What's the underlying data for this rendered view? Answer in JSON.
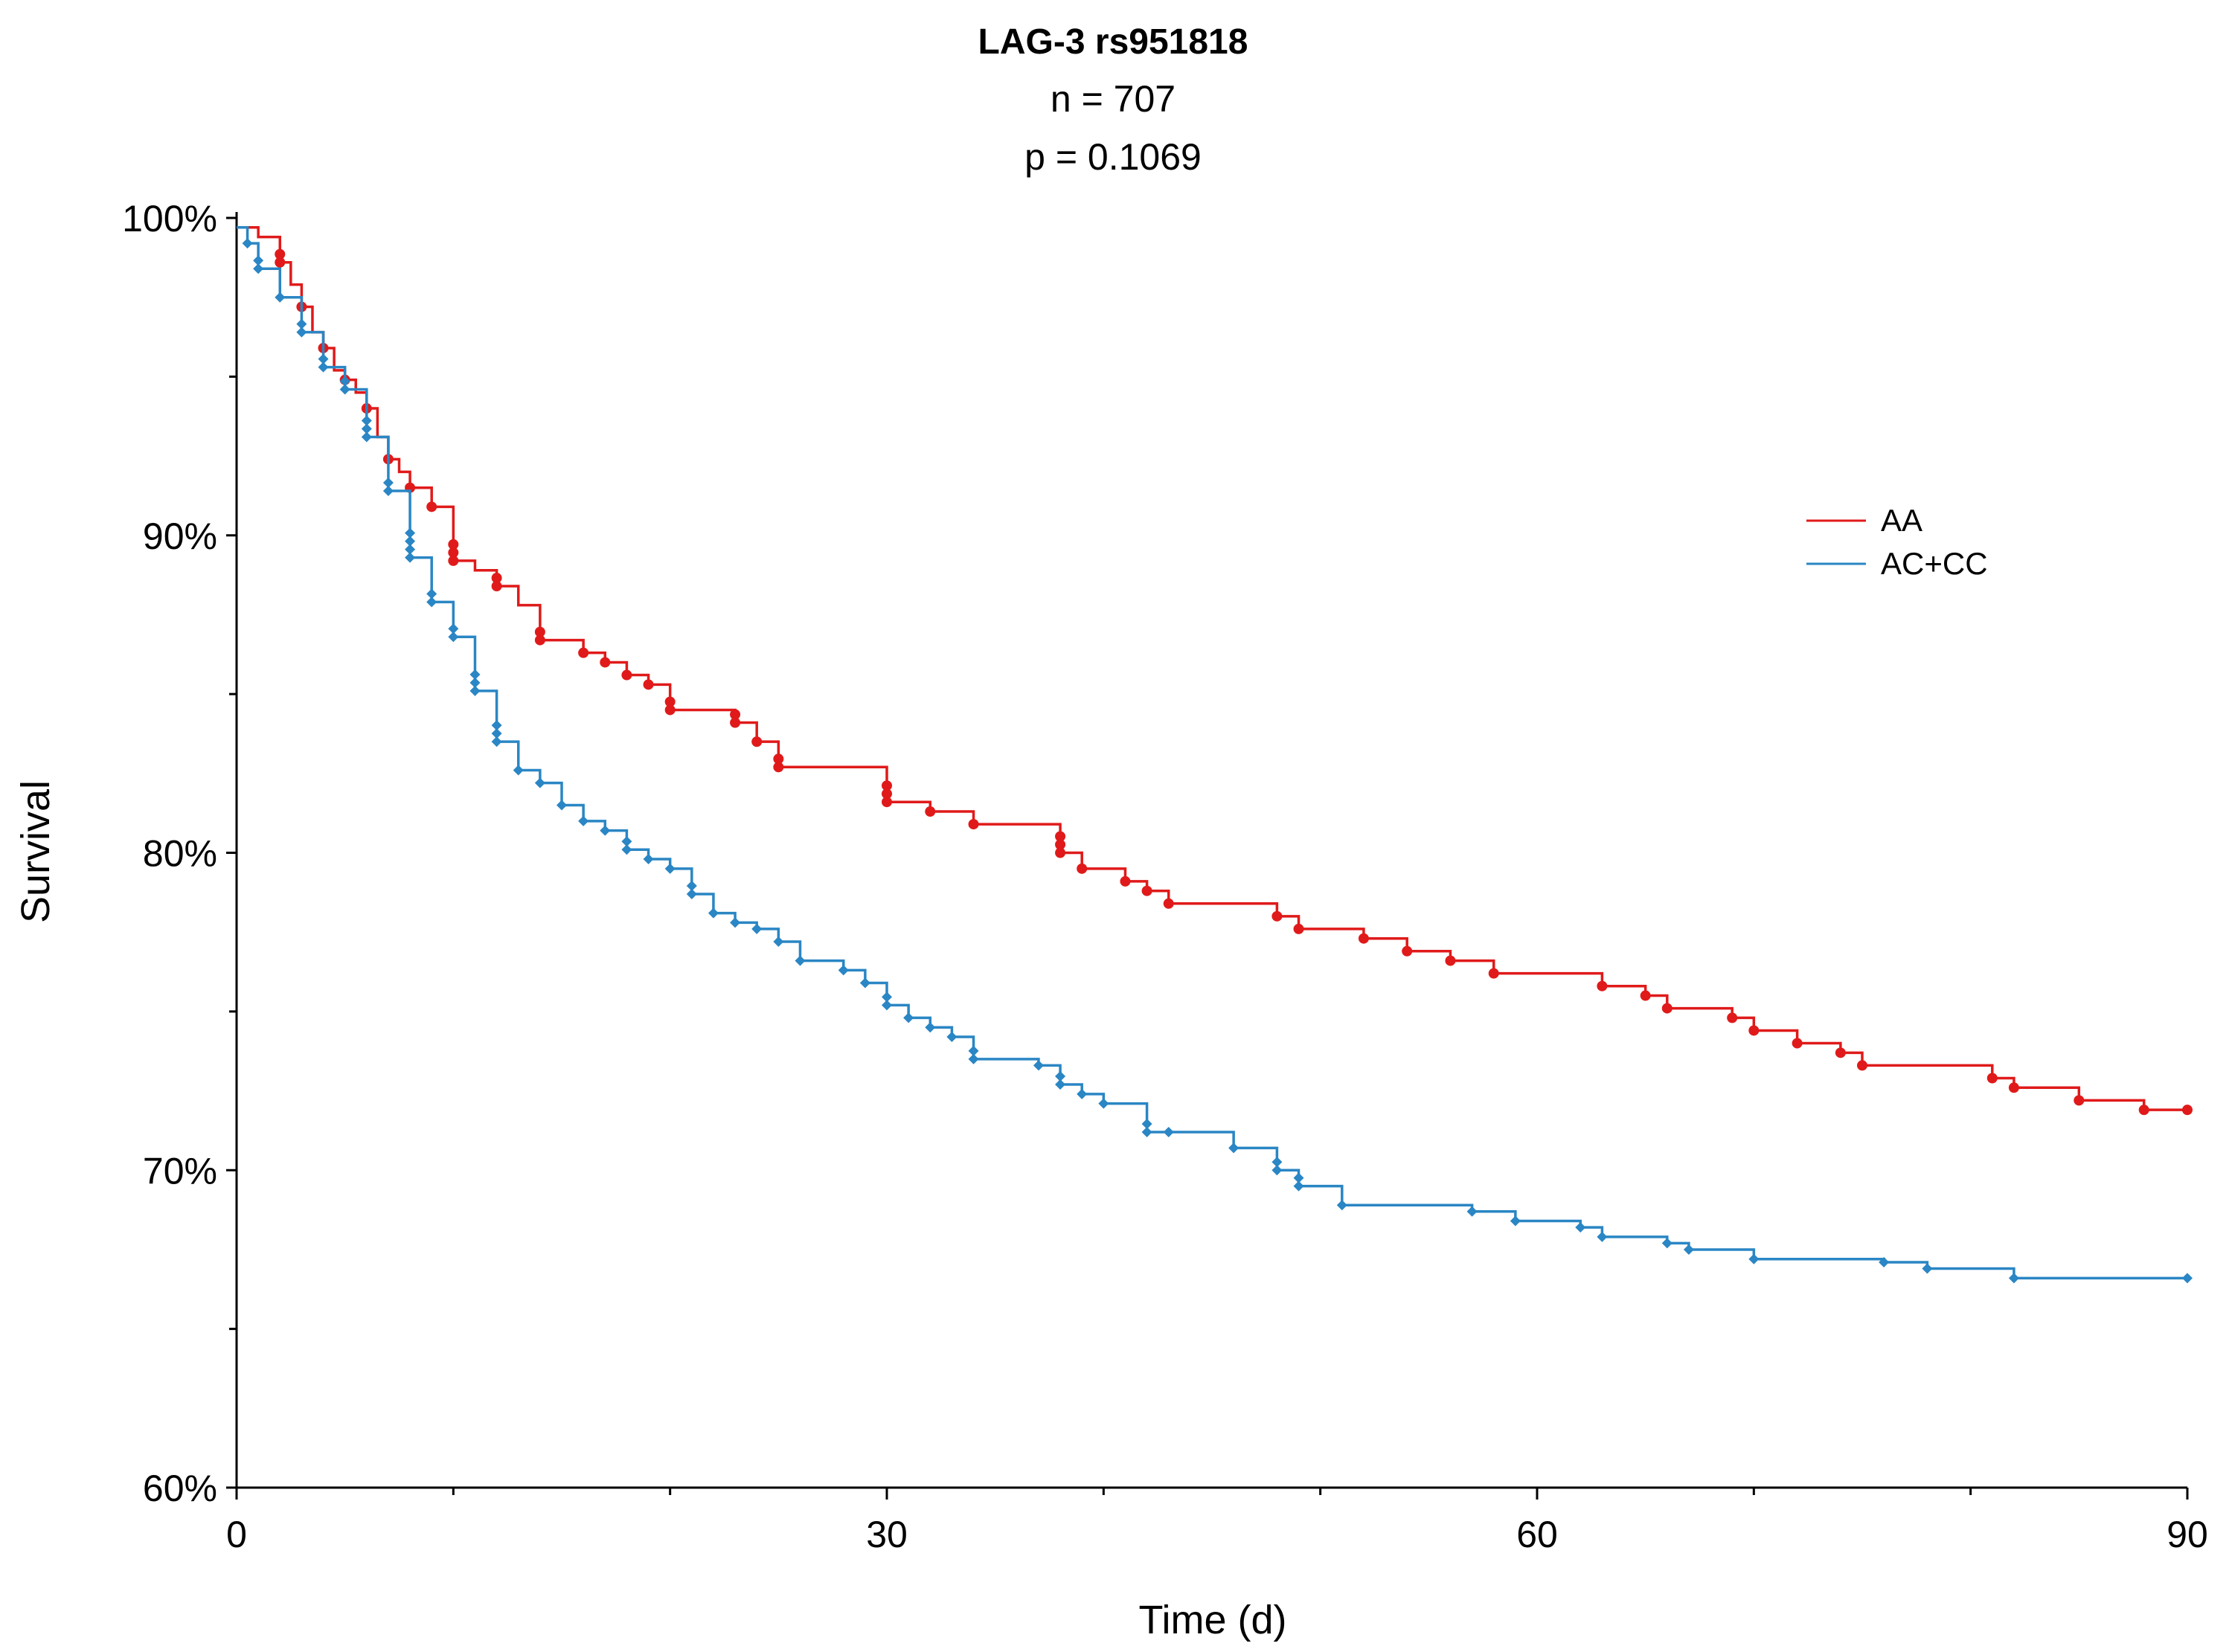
{
  "chart_data": {
    "type": "line",
    "subtype": "kaplan-meier step",
    "title": "LAG-3 rs951818",
    "subtitle_n": "n = 707",
    "subtitle_p": "p = 0.1069",
    "xlabel": "Time (d)",
    "ylabel": "Survival",
    "xlim": [
      0,
      90
    ],
    "ylim": [
      60,
      100
    ],
    "x_ticks": [
      0,
      30,
      60,
      90
    ],
    "x_tick_labels": [
      "0",
      "30",
      "60",
      "90"
    ],
    "x_minor_ticks": [
      10,
      20,
      40,
      50,
      70,
      80
    ],
    "y_ticks": [
      60,
      70,
      80,
      90,
      100
    ],
    "y_tick_labels": [
      "60%",
      "70%",
      "80%",
      "90%",
      "100%"
    ],
    "y_minor_ticks": [
      65,
      75,
      85,
      95
    ],
    "grid": false,
    "legend_position": "right",
    "series": [
      {
        "name": "AA",
        "color": "#e01a1a",
        "steps": [
          [
            0,
            99.7
          ],
          [
            1,
            99.4
          ],
          [
            2,
            98.6
          ],
          [
            2.5,
            97.9
          ],
          [
            3,
            97.2
          ],
          [
            3.5,
            96.4
          ],
          [
            4,
            95.9
          ],
          [
            4.5,
            95.2
          ],
          [
            5,
            94.9
          ],
          [
            5.5,
            94.5
          ],
          [
            6,
            94.0
          ],
          [
            6.5,
            93.1
          ],
          [
            7,
            92.4
          ],
          [
            7.5,
            92.0
          ],
          [
            8,
            91.5
          ],
          [
            9,
            90.9
          ],
          [
            10,
            89.2
          ],
          [
            11,
            88.9
          ],
          [
            12,
            88.4
          ],
          [
            13,
            87.8
          ],
          [
            14,
            86.7
          ],
          [
            15,
            86.7
          ],
          [
            16,
            86.3
          ],
          [
            17,
            86.0
          ],
          [
            18,
            85.6
          ],
          [
            19,
            85.3
          ],
          [
            20,
            84.5
          ],
          [
            23,
            84.1
          ],
          [
            24,
            83.5
          ],
          [
            25,
            82.7
          ],
          [
            30,
            81.6
          ],
          [
            32,
            81.3
          ],
          [
            34,
            80.9
          ],
          [
            38,
            80.0
          ],
          [
            39,
            79.5
          ],
          [
            41,
            79.1
          ],
          [
            42,
            78.8
          ],
          [
            43,
            78.4
          ],
          [
            48,
            78.0
          ],
          [
            49,
            77.6
          ],
          [
            52,
            77.3
          ],
          [
            54,
            76.9
          ],
          [
            56,
            76.6
          ],
          [
            58,
            76.2
          ],
          [
            63,
            75.8
          ],
          [
            65,
            75.5
          ],
          [
            66,
            75.1
          ],
          [
            69,
            74.8
          ],
          [
            70,
            74.4
          ],
          [
            72,
            74.0
          ],
          [
            74,
            73.7
          ],
          [
            75,
            73.3
          ],
          [
            81,
            72.9
          ],
          [
            82,
            72.6
          ],
          [
            85,
            72.2
          ],
          [
            88,
            71.9
          ],
          [
            90,
            71.9
          ]
        ],
        "censor_times": [
          2,
          2,
          3,
          4,
          5,
          6,
          7,
          8,
          9,
          10,
          10,
          10,
          12,
          12,
          14,
          14,
          16,
          17,
          18,
          19,
          20,
          20,
          23,
          23,
          24,
          25,
          25,
          30,
          30,
          30,
          32,
          34,
          38,
          38,
          38,
          39,
          41,
          42,
          43,
          48,
          49,
          52,
          54,
          56,
          58,
          63,
          65,
          66,
          69,
          70,
          72,
          74,
          75,
          81,
          82,
          85,
          88,
          90
        ]
      },
      {
        "name": "AC+CC",
        "color": "#2a86c4",
        "steps": [
          [
            0,
            99.7
          ],
          [
            0.5,
            99.2
          ],
          [
            1,
            98.4
          ],
          [
            2,
            97.5
          ],
          [
            3,
            96.4
          ],
          [
            4,
            95.3
          ],
          [
            5,
            94.6
          ],
          [
            6,
            93.1
          ],
          [
            7,
            91.4
          ],
          [
            8,
            89.3
          ],
          [
            9,
            87.9
          ],
          [
            10,
            86.8
          ],
          [
            11,
            85.1
          ],
          [
            12,
            83.5
          ],
          [
            13,
            82.6
          ],
          [
            14,
            82.2
          ],
          [
            15,
            81.5
          ],
          [
            16,
            81.0
          ],
          [
            17,
            80.7
          ],
          [
            18,
            80.1
          ],
          [
            19,
            79.8
          ],
          [
            20,
            79.5
          ],
          [
            21,
            78.7
          ],
          [
            22,
            78.1
          ],
          [
            23,
            77.8
          ],
          [
            24,
            77.6
          ],
          [
            25,
            77.2
          ],
          [
            26,
            76.6
          ],
          [
            28,
            76.3
          ],
          [
            29,
            75.9
          ],
          [
            30,
            75.2
          ],
          [
            31,
            74.8
          ],
          [
            32,
            74.5
          ],
          [
            33,
            74.2
          ],
          [
            34,
            73.5
          ],
          [
            37,
            73.3
          ],
          [
            38,
            72.7
          ],
          [
            39,
            72.4
          ],
          [
            40,
            72.1
          ],
          [
            42,
            71.2
          ],
          [
            46,
            70.7
          ],
          [
            48,
            70.0
          ],
          [
            49,
            69.5
          ],
          [
            51,
            68.9
          ],
          [
            52,
            68.9
          ],
          [
            57,
            68.7
          ],
          [
            59,
            68.4
          ],
          [
            62,
            68.2
          ],
          [
            63,
            67.9
          ],
          [
            66,
            67.7
          ],
          [
            67,
            67.5
          ],
          [
            70,
            67.2
          ],
          [
            76,
            67.1
          ],
          [
            78,
            66.9
          ],
          [
            82,
            66.6
          ],
          [
            90,
            66.6
          ]
        ],
        "censor_times": [
          0.5,
          1,
          1,
          2,
          3,
          3,
          4,
          4,
          5,
          5,
          6,
          6,
          6,
          7,
          7,
          8,
          8,
          8,
          8,
          9,
          9,
          10,
          10,
          11,
          11,
          11,
          12,
          12,
          12,
          13,
          14,
          15,
          16,
          17,
          18,
          18,
          19,
          20,
          21,
          21,
          22,
          23,
          24,
          25,
          26,
          28,
          29,
          30,
          30,
          31,
          32,
          33,
          34,
          34,
          37,
          38,
          38,
          39,
          40,
          42,
          42,
          43,
          46,
          48,
          48,
          49,
          49,
          51,
          57,
          59,
          62,
          63,
          66,
          67,
          70,
          76,
          78,
          82,
          90
        ]
      }
    ]
  }
}
